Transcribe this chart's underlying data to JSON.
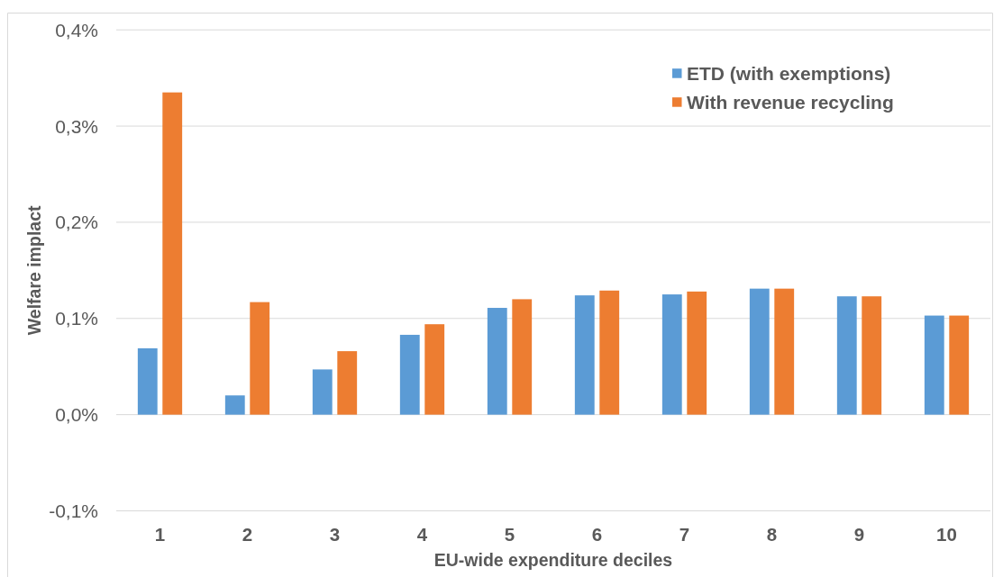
{
  "chart_data": {
    "type": "bar",
    "xlabel": "EU-wide expenditure deciles",
    "ylabel": "Welfare implact",
    "categories": [
      "1",
      "2",
      "3",
      "4",
      "5",
      "6",
      "7",
      "8",
      "9",
      "10"
    ],
    "series": [
      {
        "name": "ETD (with exemptions)",
        "color": "#5b9bd5",
        "values": [
          0.069,
          0.02,
          0.047,
          0.083,
          0.111,
          0.124,
          0.125,
          0.131,
          0.123,
          0.103
        ]
      },
      {
        "name": "With revenue recycling",
        "color": "#ed7d31",
        "values": [
          0.335,
          0.117,
          0.066,
          0.094,
          0.12,
          0.129,
          0.128,
          0.131,
          0.123,
          0.103
        ]
      }
    ],
    "ylim": [
      -0.1,
      0.4
    ],
    "yticks": [
      {
        "value": -0.1,
        "label": "-0,1%"
      },
      {
        "value": 0,
        "label": "0,0%"
      },
      {
        "value": 0.1,
        "label": "0,1%"
      },
      {
        "value": 0.2,
        "label": "0,2%"
      },
      {
        "value": 0.3,
        "label": "0,3%"
      },
      {
        "value": 0.4,
        "label": "0,4%"
      }
    ],
    "grid": "y",
    "legend": "top right"
  }
}
